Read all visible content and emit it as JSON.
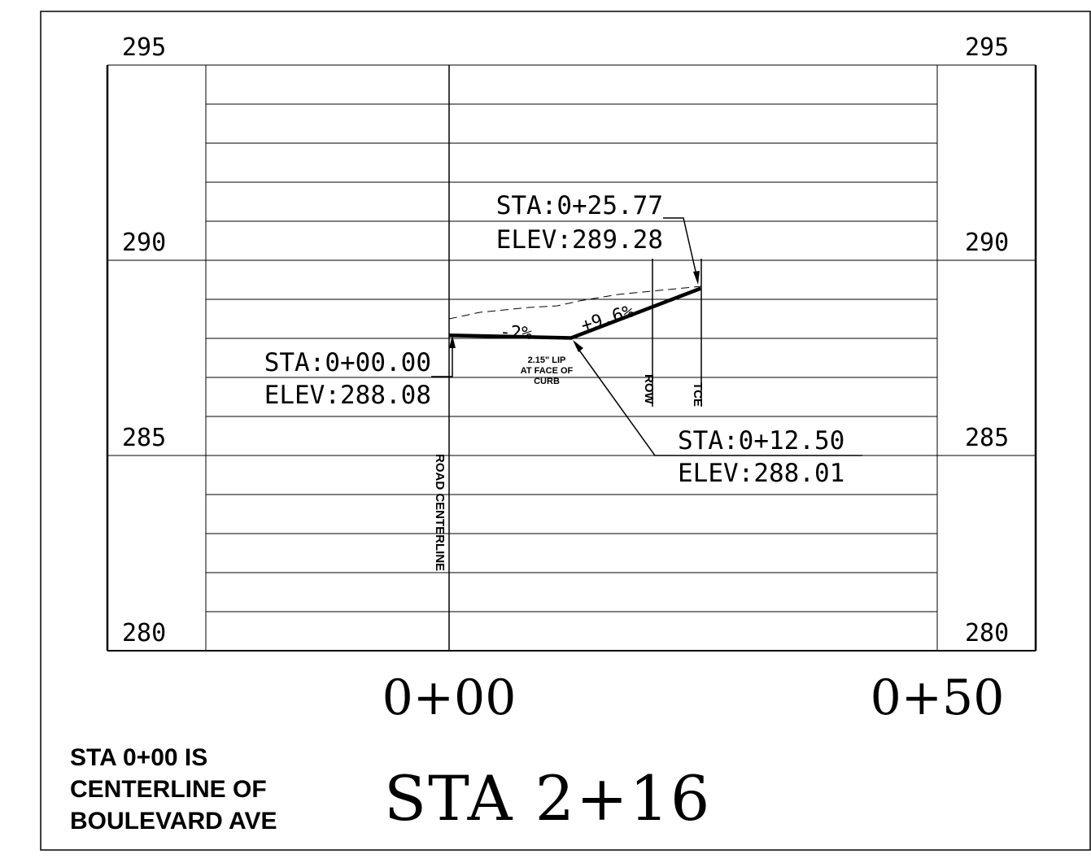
{
  "elevation_labels": {
    "e295": "295",
    "e290": "290",
    "e285": "285",
    "e280": "280"
  },
  "station_labels": {
    "start": "0+00",
    "end": "0+50"
  },
  "callouts": {
    "centerline_sta": "STA:0+00.00",
    "centerline_elev": "ELEV:288.08",
    "curb_sta": "STA:0+12.50",
    "curb_elev": "ELEV:288.01",
    "tce_sta": "STA:0+25.77",
    "tce_elev": "ELEV:289.28"
  },
  "slopes": {
    "cross_slope": "-2%",
    "back_slope": "+9.6%"
  },
  "lip_note": {
    "line1": "2.15\" LIP",
    "line2": "AT FACE OF",
    "line3": "CURB"
  },
  "vertical_labels": {
    "centerline": "ROAD CENTERLINE",
    "row": "ROW",
    "tce": "TCE"
  },
  "title": "STA 2+16",
  "note": {
    "line1": "STA 0+00 IS",
    "line2": "CENTERLINE OF",
    "line3": "BOULEVARD AVE"
  },
  "profile": {
    "stations_ft": [
      0,
      12.5,
      25.77
    ],
    "elevations_ft": [
      288.08,
      288.01,
      289.28
    ],
    "grid_elevation_range": [
      280,
      295
    ],
    "grid_interval_ft": 1,
    "station_range_ft": [
      0,
      50
    ]
  }
}
